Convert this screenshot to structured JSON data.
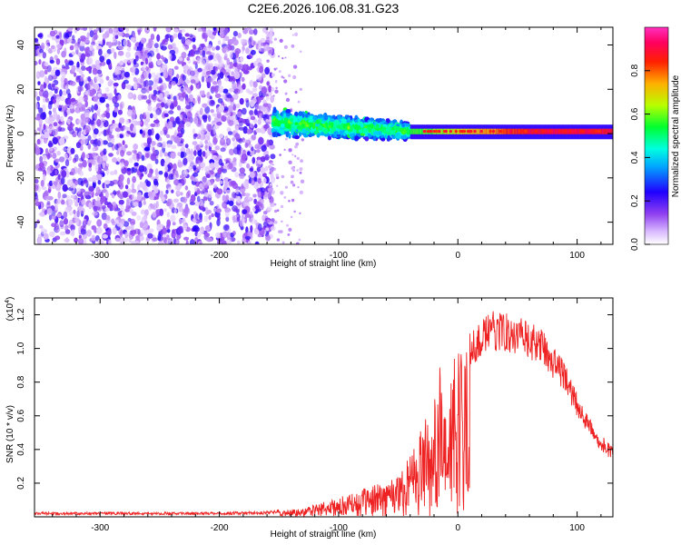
{
  "title": "C2E6.2026.106.08.31.G23",
  "chart_data": [
    {
      "type": "heatmap",
      "xlabel": "Height of straight line (km)",
      "ylabel": "Frequency (Hz)",
      "xlim": [
        -355,
        130
      ],
      "ylim": [
        -50,
        48
      ],
      "x_ticks": [
        -300,
        -200,
        -100,
        0,
        100
      ],
      "y_ticks": [
        -40,
        -20,
        0,
        20,
        40
      ],
      "colorbar": {
        "label": "Normalized spectral amplitude",
        "range": [
          0,
          1
        ],
        "ticks": [
          0.0,
          0.2,
          0.4,
          0.6,
          0.8
        ],
        "tick_labels": [
          "0.0",
          "0.2",
          "0.4",
          "0.6",
          "0.8"
        ],
        "colors": [
          "#ffffff",
          "#b070ff",
          "#6010e0",
          "#0020ff",
          "#00e0ff",
          "#00ff40",
          "#d0ff00",
          "#ffa000",
          "#ff2000",
          "#ff20c0"
        ]
      },
      "regions": [
        {
          "x_range": [
            -355,
            -155
          ],
          "y_range": [
            -50,
            48
          ],
          "amplitude": 0.15,
          "pattern": "scattered noise"
        },
        {
          "x_range": [
            -155,
            -40
          ],
          "y_range": [
            -12,
            12
          ],
          "amplitude": 0.45,
          "pattern": "band centered near 5 Hz decreasing toward 0 Hz"
        },
        {
          "x_range": [
            -40,
            130
          ],
          "y_range": [
            -3,
            4
          ],
          "amplitude": 0.85,
          "pattern": "narrow line near 1 Hz"
        }
      ]
    },
    {
      "type": "line",
      "xlabel": "Height of straight line (km)",
      "ylabel": "SNR (10 * v/v)",
      "y_multiplier": "(x10^4)",
      "xlim": [
        -355,
        130
      ],
      "ylim": [
        0,
        1.3
      ],
      "x_ticks": [
        -300,
        -200,
        -100,
        0,
        100
      ],
      "y_ticks": [
        0.2,
        0.4,
        0.6,
        0.8,
        1.0,
        1.2
      ],
      "y_tick_labels": [
        "0.2",
        "0.4",
        "0.6",
        "0.8",
        "1.0",
        "1.2"
      ],
      "line_color": "#ee2222",
      "envelope": {
        "x": [
          -355,
          -300,
          -250,
          -200,
          -160,
          -130,
          -110,
          -90,
          -70,
          -50,
          -35,
          -25,
          -15,
          -10,
          -5,
          0,
          10,
          20,
          30,
          40,
          50,
          60,
          70,
          80,
          90,
          100,
          110,
          120,
          130
        ],
        "y": [
          0.02,
          0.02,
          0.02,
          0.02,
          0.025,
          0.05,
          0.09,
          0.13,
          0.18,
          0.25,
          0.45,
          0.62,
          0.85,
          0.55,
          0.82,
          1.0,
          1.08,
          1.15,
          1.2,
          1.2,
          1.17,
          1.13,
          1.1,
          1.0,
          0.9,
          0.72,
          0.58,
          0.48,
          0.4
        ]
      }
    }
  ]
}
